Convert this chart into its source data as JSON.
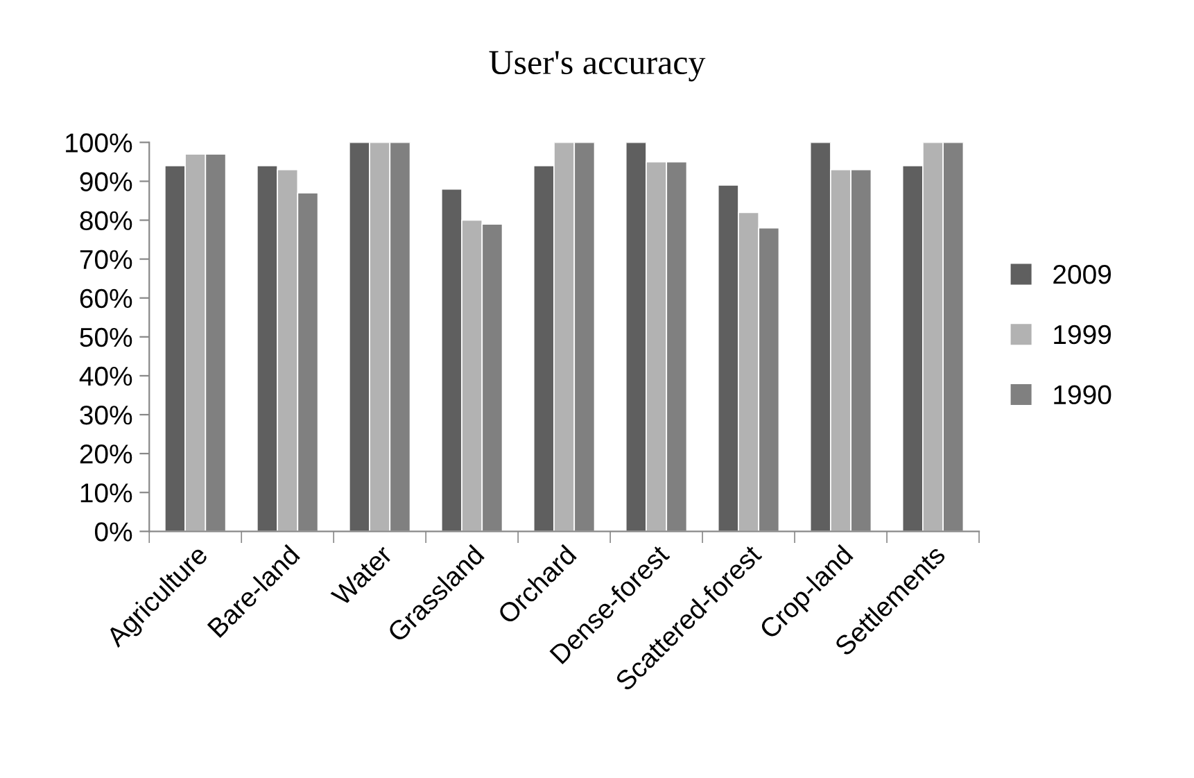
{
  "chart_data": {
    "type": "bar",
    "title": "User's accuracy",
    "categories": [
      "Agriculture",
      "Bare-land",
      "Water",
      "Grassland",
      "Orchard",
      "Dense-forest",
      "Scattered-forest",
      "Crop-land",
      "Settlements"
    ],
    "series": [
      {
        "name": "2009",
        "color": "#5f5f5f",
        "values": [
          94,
          94,
          100,
          88,
          94,
          100,
          89,
          100,
          94
        ]
      },
      {
        "name": "1999",
        "color": "#b2b2b2",
        "values": [
          97,
          93,
          100,
          80,
          100,
          95,
          82,
          93,
          100
        ]
      },
      {
        "name": "1990",
        "color": "#808080",
        "values": [
          97,
          87,
          100,
          79,
          100,
          95,
          78,
          93,
          100
        ]
      }
    ],
    "ylim": [
      0,
      100
    ],
    "yticks": [
      {
        "value": 0,
        "label": "0%"
      },
      {
        "value": 10,
        "label": "10%"
      },
      {
        "value": 20,
        "label": "20%"
      },
      {
        "value": 30,
        "label": "30%"
      },
      {
        "value": 40,
        "label": "40%"
      },
      {
        "value": 50,
        "label": "50%"
      },
      {
        "value": 60,
        "label": "60%"
      },
      {
        "value": 70,
        "label": "70%"
      },
      {
        "value": 80,
        "label": "80%"
      },
      {
        "value": 90,
        "label": "90%"
      },
      {
        "value": 100,
        "label": "100%"
      }
    ],
    "grid": false,
    "legend": "right"
  }
}
